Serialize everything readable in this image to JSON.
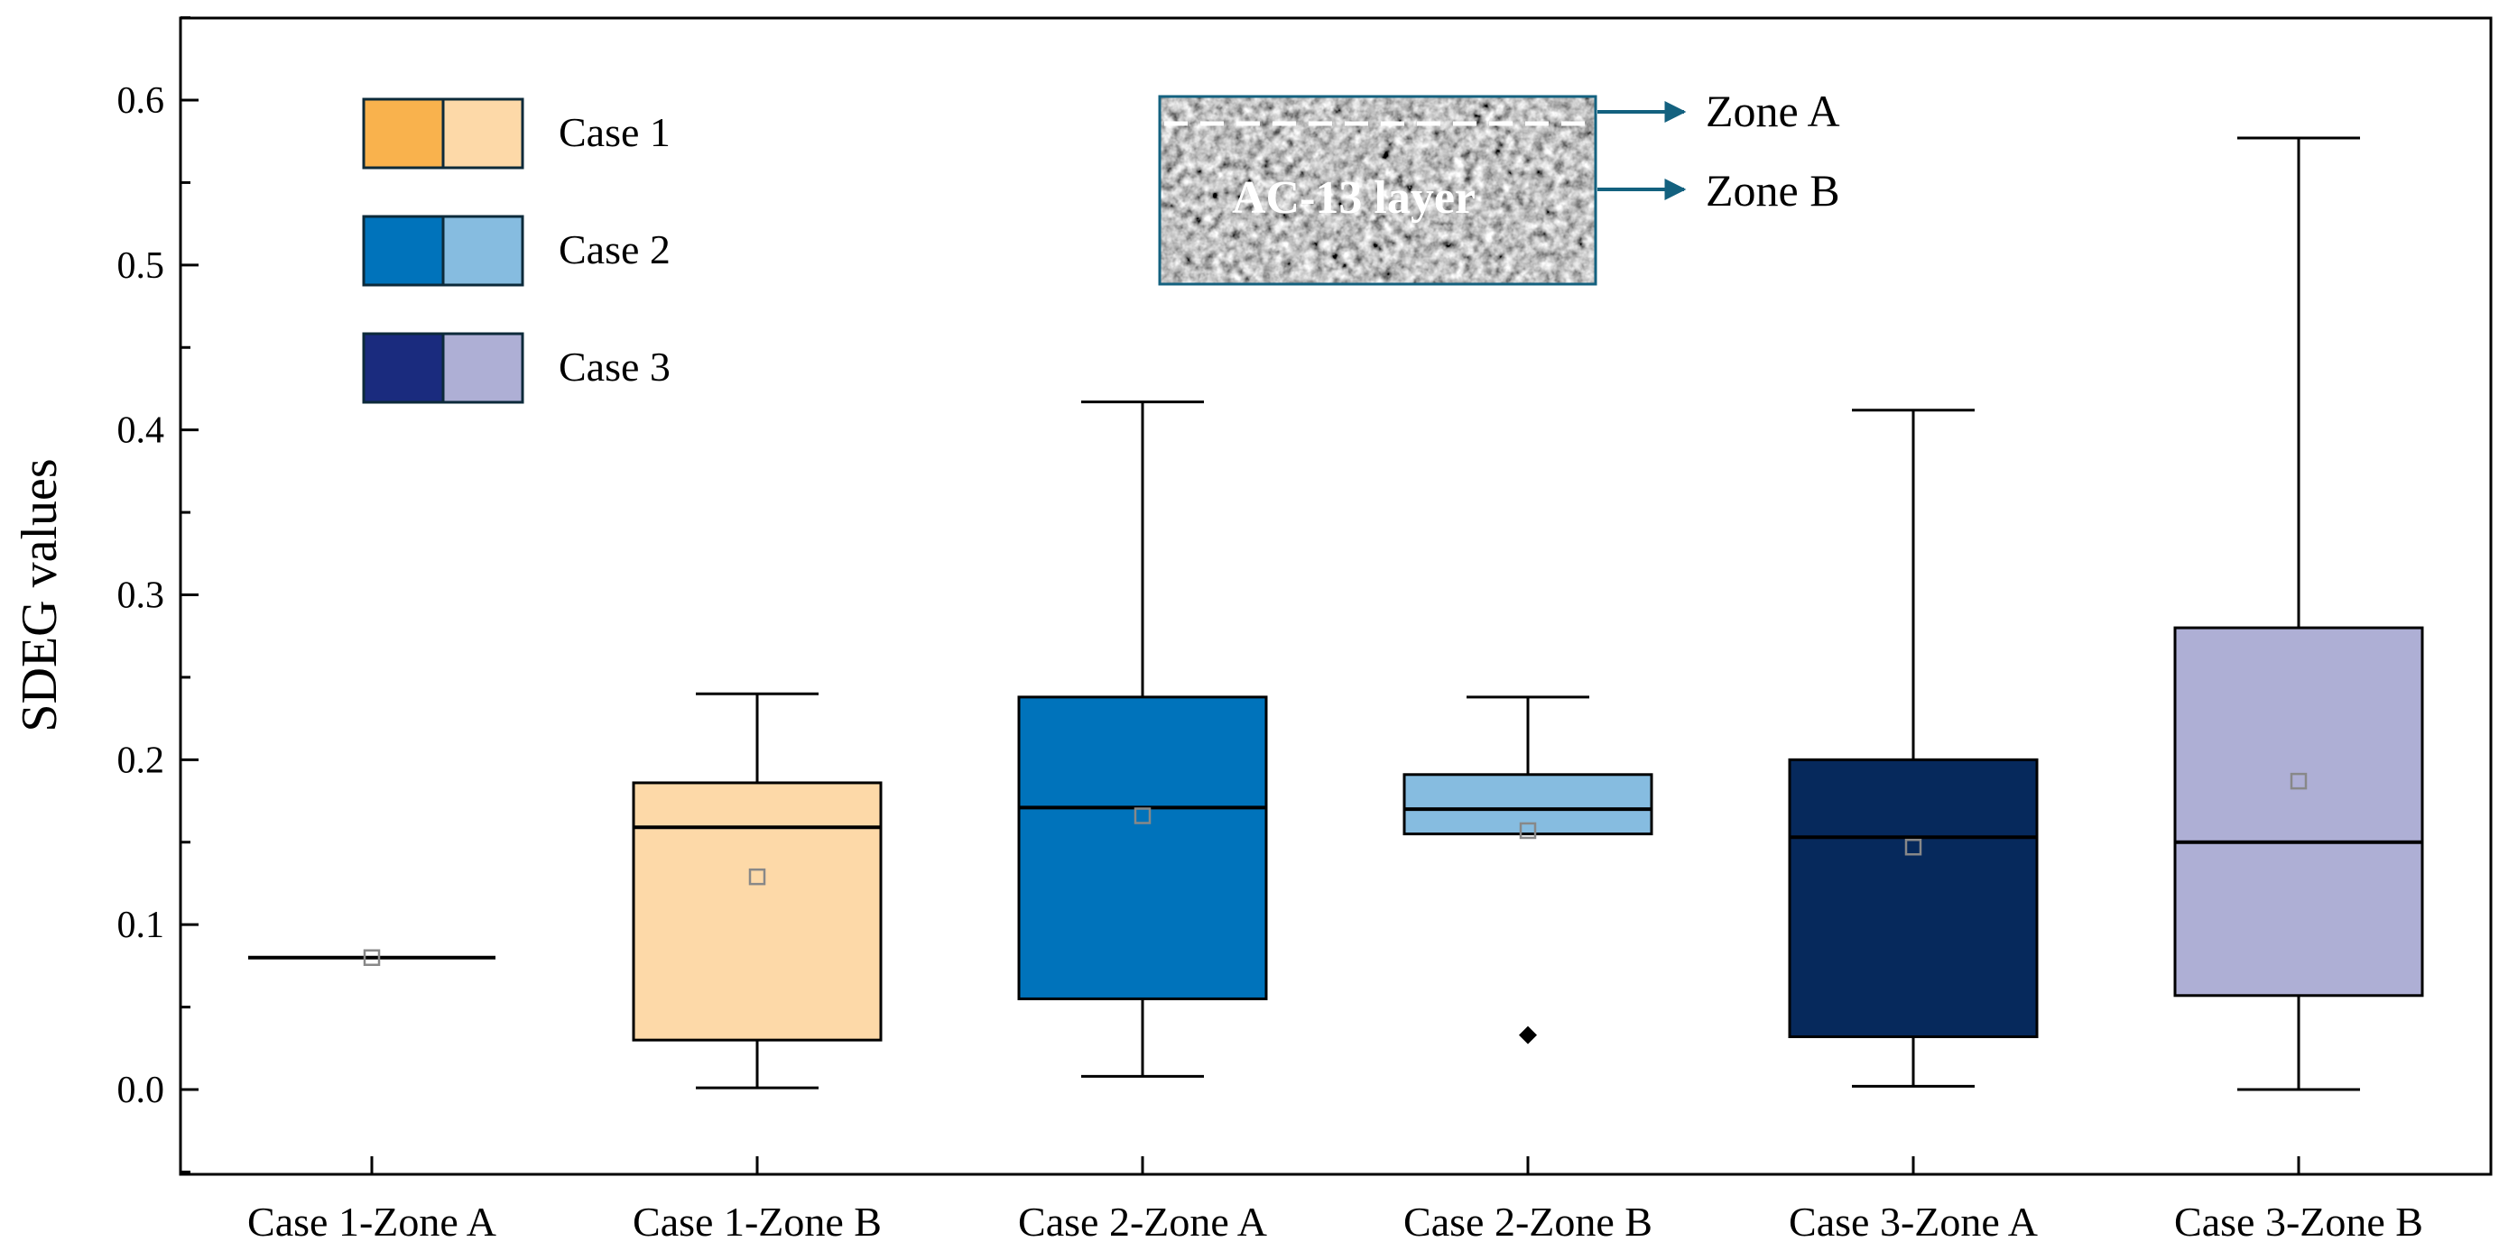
{
  "chart_data": {
    "type": "box",
    "ylabel": "SDEG values",
    "xlabel": "",
    "ylim": [
      -0.05,
      0.65
    ],
    "yticks": [
      0.0,
      0.1,
      0.2,
      0.3,
      0.4,
      0.5,
      0.6
    ],
    "ytick_labels": [
      "0.0",
      "0.1",
      "0.2",
      "0.3",
      "0.4",
      "0.5",
      "0.6"
    ],
    "categories": [
      "Case 1-Zone A",
      "Case 1-Zone B",
      "Case 2-Zone A",
      "Case 2-Zone B",
      "Case 3-Zone A",
      "Case 3-Zone B"
    ],
    "boxes": [
      {
        "category": "Case 1-Zone A",
        "whisker_low": 0.08,
        "q1": 0.08,
        "median": 0.08,
        "q3": 0.08,
        "whisker_high": 0.08,
        "mean": 0.08,
        "outliers": [],
        "color": "#F9B24D"
      },
      {
        "category": "Case 1-Zone B",
        "whisker_low": 0.001,
        "q1": 0.03,
        "median": 0.159,
        "q3": 0.186,
        "whisker_high": 0.24,
        "mean": 0.129,
        "outliers": [],
        "color": "#FDD9A8"
      },
      {
        "category": "Case 2-Zone A",
        "whisker_low": 0.008,
        "q1": 0.055,
        "median": 0.171,
        "q3": 0.238,
        "whisker_high": 0.417,
        "mean": 0.166,
        "outliers": [],
        "color": "#0073BB"
      },
      {
        "category": "Case 2-Zone B",
        "whisker_low": 0.155,
        "q1": 0.155,
        "median": 0.17,
        "q3": 0.191,
        "whisker_high": 0.238,
        "mean": 0.157,
        "outliers": [
          0.033
        ],
        "color": "#86BCE0"
      },
      {
        "category": "Case 3-Zone A",
        "whisker_low": 0.002,
        "q1": 0.032,
        "median": 0.153,
        "q3": 0.2,
        "whisker_high": 0.412,
        "mean": 0.147,
        "outliers": [],
        "color": "#06295C"
      },
      {
        "category": "Case 3-Zone B",
        "whisker_low": 0.0,
        "q1": 0.057,
        "median": 0.15,
        "q3": 0.28,
        "whisker_high": 0.577,
        "mean": 0.187,
        "outliers": [],
        "color": "#AEAFD5"
      }
    ],
    "legend": {
      "placement": "top-left",
      "entries": [
        {
          "label": "Case 1",
          "colors": [
            "#F9B24D",
            "#FDD9A8"
          ]
        },
        {
          "label": "Case 2",
          "colors": [
            "#0073BB",
            "#86BCE0"
          ]
        },
        {
          "label": "Case 3",
          "colors": [
            "#1A2B7E",
            "#AEAFD5"
          ]
        }
      ]
    },
    "inset": {
      "layer_label": "AC-13 layer",
      "zones": [
        "Zone A",
        "Zone B"
      ],
      "arrow_color": "#13617F"
    },
    "grid": false
  }
}
